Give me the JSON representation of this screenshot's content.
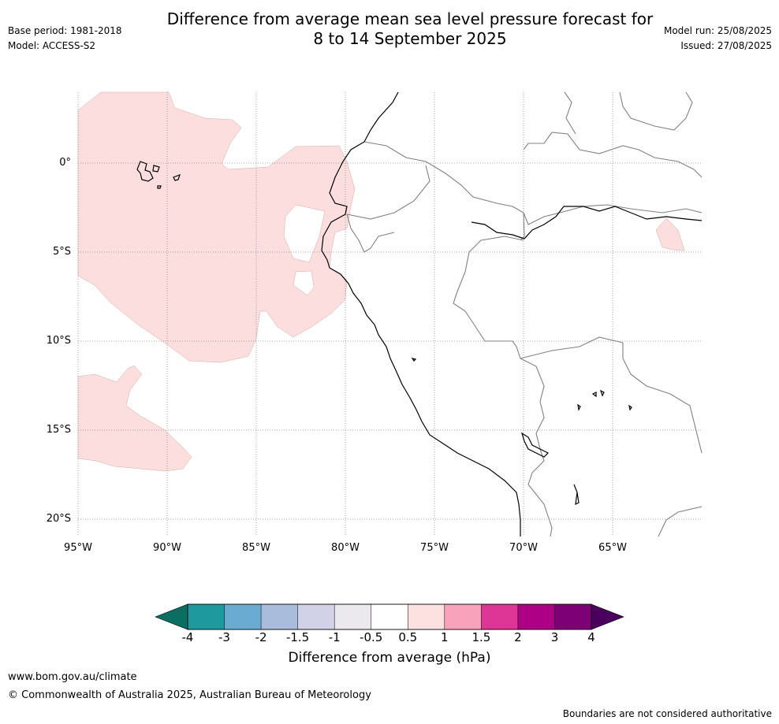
{
  "title": {
    "line1": "Difference from average mean sea level pressure forecast for",
    "line2": "8 to 14 September 2025"
  },
  "meta": {
    "base_period": "Base period: 1981-2018",
    "model": "Model: ACCESS-S2",
    "model_run": "Model run: 25/08/2025",
    "issued": "Issued: 27/08/2025"
  },
  "map": {
    "lat_labels": [
      "0°",
      "5°S",
      "10°S",
      "15°S",
      "20°S"
    ],
    "lon_labels": [
      "95°W",
      "90°W",
      "85°W",
      "80°W",
      "75°W",
      "70°W",
      "65°W"
    ],
    "anomaly_fill_color": "#fcdede",
    "coast_color": "#000000",
    "border_color": "#808080"
  },
  "colorbar": {
    "title": "Difference from average (hPa)",
    "ticks": [
      "-4",
      "-3",
      "-2",
      "-1.5",
      "-1",
      "-0.5",
      "0.5",
      "1",
      "1.5",
      "2",
      "3",
      "4"
    ],
    "colors": [
      "#1e9a9e",
      "#6aabd2",
      "#a9bcdc",
      "#d1d1e7",
      "#ebe9ee",
      "#ffffff",
      "#fde0e0",
      "#f8a2bc",
      "#dd3696",
      "#ad0085",
      "#7d0077"
    ],
    "low_extend_color": "#0b6e62",
    "high_extend_color": "#4b0060"
  },
  "footer": {
    "url": "www.bom.gov.au/climate",
    "copyright": "© Commonwealth of Australia 2025, Australian Bureau of Meteorology",
    "note": "Boundaries are not considered authoritative"
  }
}
